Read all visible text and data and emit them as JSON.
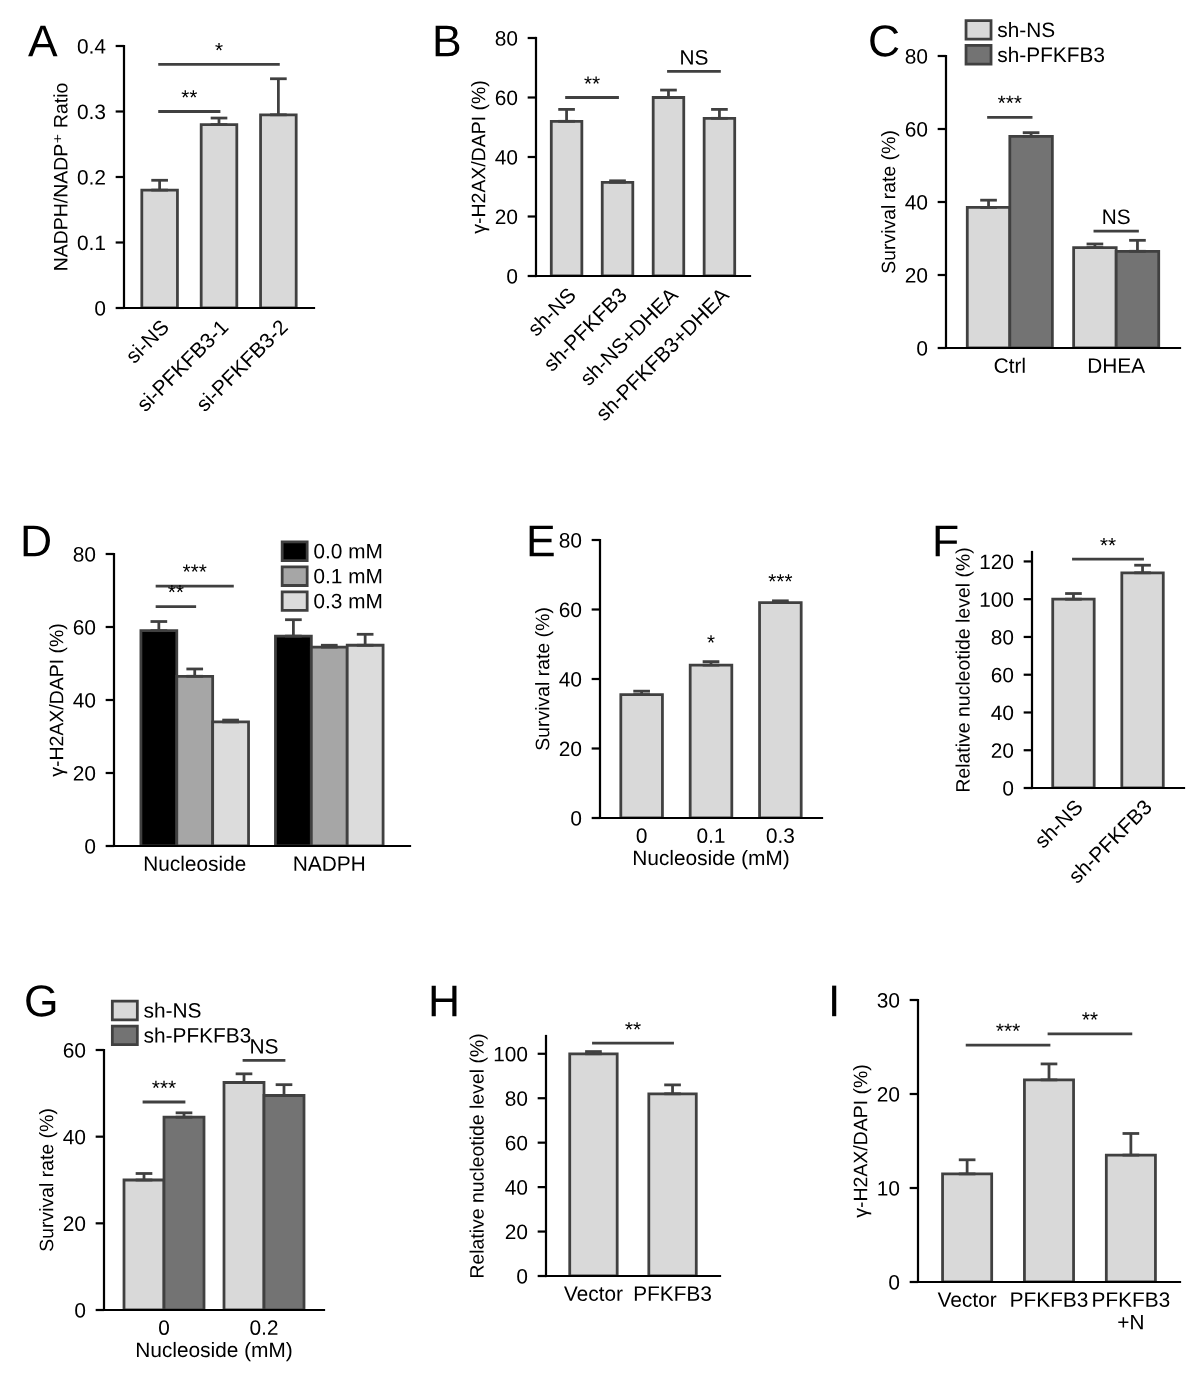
{
  "chart_data": [
    {
      "type": "bar",
      "title": "A",
      "ylabel": "NADPH/NADP⁺ Ratio",
      "categories": [
        "si-NS",
        "si-PFKFB3-1",
        "si-PFKFB3-2"
      ],
      "values": [
        0.18,
        0.28,
        0.295
      ],
      "errors": [
        0.015,
        0.01,
        0.055
      ],
      "color": "#d9d9d9",
      "ylim": [
        0,
        0.4
      ],
      "yticks": [
        0,
        0.1,
        0.2,
        0.3,
        0.4
      ],
      "annotations": [
        "**",
        "*"
      ],
      "grid": false,
      "legend": false
    },
    {
      "type": "bar",
      "title": "B",
      "ylabel": "γ-H2AX/DAPI (%)",
      "categories": [
        "sh-NS",
        "sh-PFKFB3",
        "sh-NS+DHEA",
        "sh-PFKFB3+DHEA"
      ],
      "values": [
        52,
        31.5,
        60,
        53
      ],
      "errors": [
        4,
        0.5,
        2.5,
        3
      ],
      "color": "#d9d9d9",
      "ylim": [
        0,
        80
      ],
      "yticks": [
        0,
        20,
        40,
        60,
        80
      ],
      "annotations": [
        "**",
        "NS"
      ],
      "grid": false,
      "legend": false
    },
    {
      "type": "bar",
      "title": "C",
      "ylabel": "Survival rate (%)",
      "categories": [
        "Ctrl",
        "DHEA"
      ],
      "series": [
        {
          "name": "sh-NS",
          "color": "#d9d9d9",
          "values": [
            38.5,
            27.5
          ],
          "errors": [
            2,
            1
          ]
        },
        {
          "name": "sh-PFKFB3",
          "color": "#737373",
          "values": [
            58,
            26.5
          ],
          "errors": [
            1,
            3
          ]
        }
      ],
      "ylim": [
        0,
        80
      ],
      "yticks": [
        0,
        20,
        40,
        60,
        80
      ],
      "annotations": [
        "***",
        "NS"
      ],
      "grid": false,
      "legend": "top left"
    },
    {
      "type": "bar",
      "title": "D",
      "ylabel": "γ-H2AX/DAPI (%)",
      "categories": [
        "Nucleoside",
        "NADPH"
      ],
      "series": [
        {
          "name": "0.0 mM",
          "color": "#000000",
          "values": [
            59,
            57.5
          ],
          "errors": [
            2.5,
            4.5
          ]
        },
        {
          "name": "0.1 mM",
          "color": "#a6a6a6",
          "values": [
            46.5,
            54.5
          ],
          "errors": [
            2,
            0.5
          ]
        },
        {
          "name": "0.3 mM",
          "color": "#dcdcdc",
          "values": [
            34,
            55
          ],
          "errors": [
            0.5,
            3
          ]
        }
      ],
      "ylim": [
        0,
        80
      ],
      "yticks": [
        0,
        20,
        40,
        60,
        80
      ],
      "annotations": [
        "***",
        "**"
      ],
      "grid": false,
      "legend": "top right"
    },
    {
      "type": "bar",
      "title": "E",
      "ylabel": "Survival rate (%)",
      "xlabel": "Nucleoside (mM)",
      "categories": [
        "0",
        "0.1",
        "0.3"
      ],
      "values": [
        35.5,
        44,
        62
      ],
      "errors": [
        1,
        1,
        0.5
      ],
      "color": "#d9d9d9",
      "ylim": [
        0,
        80
      ],
      "yticks": [
        0,
        20,
        40,
        60,
        80
      ],
      "annotations": [
        "*",
        "***"
      ],
      "grid": false,
      "legend": false
    },
    {
      "type": "bar",
      "title": "F",
      "ylabel": "Relative nucleotide level (%)",
      "categories": [
        "sh-NS",
        "sh-PFKFB3"
      ],
      "values": [
        100,
        114
      ],
      "errors": [
        3,
        4
      ],
      "color": "#d9d9d9",
      "ylim": [
        0,
        125
      ],
      "yticks": [
        0,
        20,
        40,
        60,
        80,
        100,
        120
      ],
      "annotations": [
        "**"
      ],
      "grid": false,
      "legend": false
    },
    {
      "type": "bar",
      "title": "G",
      "ylabel": "Survival rate (%)",
      "xlabel": "Nucleoside (mM)",
      "categories": [
        "0",
        "0.2"
      ],
      "series": [
        {
          "name": "sh-NS",
          "color": "#d9d9d9",
          "values": [
            30,
            52.5
          ],
          "errors": [
            1.5,
            2
          ]
        },
        {
          "name": "sh-PFKFB3",
          "color": "#737373",
          "values": [
            44.5,
            49.5
          ],
          "errors": [
            1,
            2.5
          ]
        }
      ],
      "ylim": [
        0,
        60
      ],
      "yticks": [
        0,
        20,
        40,
        60
      ],
      "annotations": [
        "***",
        "NS"
      ],
      "grid": false,
      "legend": "top left"
    },
    {
      "type": "bar",
      "title": "H",
      "ylabel": "Relative nucleotide level (%)",
      "categories": [
        "Vector",
        "PFKFB3"
      ],
      "values": [
        100,
        82
      ],
      "errors": [
        1,
        4
      ],
      "color": "#d9d9d9",
      "ylim": [
        0,
        108
      ],
      "yticks": [
        0,
        20,
        40,
        60,
        80,
        100
      ],
      "annotations": [
        "**"
      ],
      "grid": false,
      "legend": false
    },
    {
      "type": "bar",
      "title": "I",
      "ylabel": "γ-H2AX/DAPI (%)",
      "categories": [
        "Vector",
        "PFKFB3",
        "PFKFB3\n+N"
      ],
      "values": [
        11.5,
        21.5,
        13.5
      ],
      "errors": [
        1.5,
        1.7,
        2.3
      ],
      "color": "#d9d9d9",
      "ylim": [
        0,
        30
      ],
      "yticks": [
        0,
        10,
        20,
        30
      ],
      "annotations": [
        "***",
        "**"
      ],
      "grid": false,
      "legend": false
    }
  ]
}
